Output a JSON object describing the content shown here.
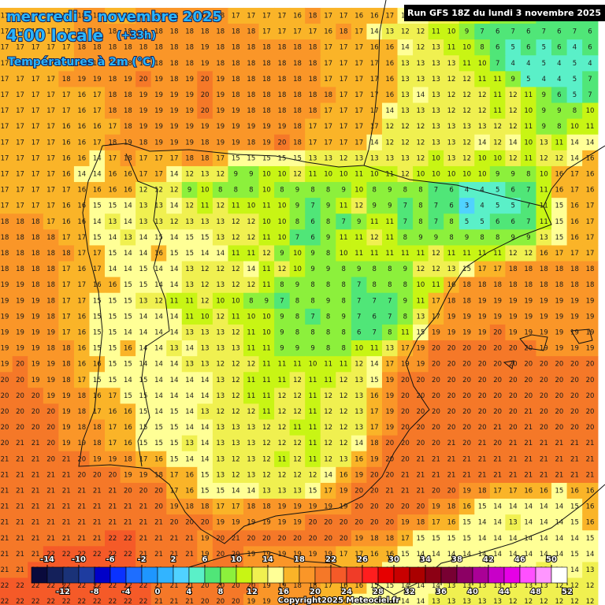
{
  "header": {
    "date": "mercredi 5 novembre 2025",
    "time": "4:00 locale",
    "lead": "(+33h)",
    "field": "Températures à 2m (°C)",
    "run": "Run GFS 18Z du lundi 3 novembre 2025",
    "copyright": "Copyright2025 Meteociel.fr"
  },
  "grid": [
    [
      17,
      17,
      17,
      17,
      17,
      18,
      18,
      17,
      17,
      18,
      18,
      18,
      18,
      18,
      18,
      17,
      17,
      17,
      17,
      16,
      18,
      17,
      17,
      16,
      16,
      17,
      15,
      14,
      13,
      12,
      11,
      10,
      9,
      9,
      8,
      7,
      6,
      6,
      6
    ],
    [
      17,
      17,
      17,
      17,
      17,
      18,
      18,
      18,
      18,
      18,
      18,
      18,
      18,
      18,
      18,
      18,
      18,
      17,
      17,
      17,
      17,
      16,
      18,
      17,
      14,
      13,
      12,
      12,
      11,
      10,
      9,
      7,
      6,
      7,
      6,
      7,
      6,
      7,
      6
    ],
    [
      17,
      17,
      17,
      17,
      17,
      18,
      18,
      18,
      18,
      18,
      18,
      18,
      18,
      19,
      18,
      18,
      18,
      18,
      18,
      18,
      18,
      17,
      17,
      17,
      16,
      16,
      14,
      12,
      13,
      11,
      10,
      8,
      6,
      5,
      6,
      5,
      6,
      4,
      6
    ],
    [
      17,
      17,
      17,
      17,
      17,
      18,
      18,
      18,
      18,
      18,
      18,
      18,
      18,
      19,
      18,
      18,
      18,
      18,
      18,
      18,
      18,
      17,
      17,
      17,
      17,
      16,
      13,
      13,
      13,
      13,
      11,
      10,
      7,
      4,
      4,
      5,
      4,
      5,
      4
    ],
    [
      17,
      17,
      17,
      17,
      18,
      19,
      19,
      18,
      19,
      20,
      19,
      18,
      19,
      20,
      19,
      18,
      18,
      18,
      18,
      18,
      18,
      17,
      17,
      17,
      17,
      16,
      13,
      13,
      13,
      12,
      12,
      11,
      11,
      9,
      5,
      4,
      4,
      5,
      7
    ],
    [
      17,
      17,
      17,
      17,
      17,
      16,
      17,
      18,
      18,
      19,
      19,
      19,
      19,
      20,
      19,
      18,
      18,
      18,
      18,
      18,
      18,
      18,
      17,
      17,
      17,
      16,
      13,
      14,
      13,
      12,
      12,
      12,
      11,
      12,
      11,
      9,
      6,
      5,
      7
    ],
    [
      17,
      17,
      17,
      17,
      17,
      16,
      17,
      18,
      18,
      19,
      19,
      19,
      19,
      20,
      19,
      19,
      18,
      18,
      18,
      18,
      18,
      17,
      17,
      17,
      17,
      14,
      13,
      13,
      13,
      12,
      12,
      12,
      11,
      12,
      10,
      9,
      9,
      8,
      10
    ],
    [
      17,
      17,
      17,
      17,
      16,
      16,
      16,
      17,
      18,
      19,
      19,
      19,
      19,
      19,
      19,
      19,
      19,
      19,
      19,
      18,
      17,
      17,
      17,
      17,
      17,
      12,
      12,
      12,
      13,
      13,
      13,
      13,
      12,
      12,
      11,
      9,
      8,
      10,
      11
    ],
    [
      17,
      17,
      17,
      17,
      16,
      16,
      17,
      18,
      19,
      18,
      19,
      19,
      19,
      18,
      19,
      19,
      18,
      19,
      20,
      18,
      17,
      17,
      17,
      17,
      14,
      12,
      12,
      12,
      13,
      13,
      12,
      14,
      12,
      14,
      10,
      13,
      11,
      14,
      14
    ],
    [
      17,
      17,
      17,
      17,
      16,
      16,
      14,
      17,
      18,
      17,
      17,
      17,
      18,
      18,
      17,
      15,
      15,
      15,
      15,
      15,
      13,
      13,
      12,
      13,
      13,
      13,
      13,
      12,
      10,
      13,
      12,
      10,
      10,
      12,
      11,
      12,
      12,
      14,
      16
    ],
    [
      17,
      17,
      17,
      17,
      16,
      14,
      14,
      16,
      16,
      17,
      17,
      14,
      12,
      13,
      12,
      9,
      9,
      10,
      10,
      12,
      11,
      10,
      10,
      11,
      10,
      11,
      12,
      10,
      10,
      10,
      10,
      10,
      9,
      9,
      8,
      10,
      16,
      17,
      16
    ],
    [
      17,
      17,
      17,
      17,
      17,
      16,
      16,
      16,
      16,
      12,
      12,
      12,
      9,
      10,
      8,
      8,
      8,
      10,
      8,
      9,
      8,
      8,
      9,
      10,
      8,
      9,
      8,
      8,
      7,
      6,
      4,
      4,
      5,
      6,
      7,
      11,
      16,
      17,
      16
    ],
    [
      17,
      17,
      17,
      17,
      16,
      16,
      15,
      15,
      14,
      13,
      13,
      14,
      12,
      11,
      12,
      11,
      10,
      11,
      10,
      9,
      7,
      9,
      11,
      12,
      9,
      9,
      7,
      8,
      7,
      6,
      3,
      4,
      5,
      5,
      7,
      11,
      15,
      16,
      17
    ],
    [
      18,
      18,
      18,
      17,
      16,
      16,
      14,
      13,
      14,
      13,
      13,
      12,
      13,
      13,
      13,
      12,
      12,
      10,
      10,
      8,
      6,
      8,
      7,
      9,
      11,
      11,
      7,
      8,
      7,
      8,
      5,
      5,
      6,
      6,
      7,
      11,
      15,
      16,
      17
    ],
    [
      18,
      18,
      18,
      18,
      17,
      17,
      15,
      14,
      13,
      14,
      15,
      14,
      15,
      15,
      13,
      12,
      12,
      11,
      10,
      7,
      6,
      9,
      11,
      11,
      12,
      11,
      8,
      9,
      9,
      8,
      9,
      8,
      8,
      9,
      9,
      13,
      15,
      16,
      17
    ],
    [
      18,
      18,
      18,
      18,
      18,
      17,
      17,
      15,
      14,
      14,
      16,
      15,
      15,
      14,
      14,
      11,
      11,
      12,
      9,
      10,
      9,
      8,
      10,
      11,
      11,
      11,
      11,
      11,
      12,
      11,
      11,
      11,
      11,
      12,
      12,
      16,
      17,
      17,
      17
    ],
    [
      18,
      18,
      18,
      18,
      17,
      16,
      17,
      14,
      14,
      15,
      14,
      14,
      13,
      12,
      12,
      12,
      14,
      11,
      12,
      10,
      9,
      9,
      8,
      9,
      8,
      8,
      9,
      12,
      12,
      13,
      15,
      17,
      17,
      18,
      18,
      18,
      18,
      18,
      18
    ],
    [
      19,
      19,
      18,
      18,
      17,
      17,
      16,
      16,
      15,
      15,
      14,
      14,
      13,
      12,
      13,
      12,
      12,
      11,
      8,
      9,
      8,
      8,
      8,
      7,
      8,
      8,
      8,
      10,
      11,
      16,
      18,
      18,
      18,
      18,
      18,
      18,
      18,
      18,
      18
    ],
    [
      19,
      19,
      19,
      18,
      17,
      17,
      15,
      15,
      15,
      13,
      12,
      11,
      11,
      12,
      10,
      10,
      8,
      9,
      7,
      8,
      8,
      9,
      8,
      7,
      7,
      7,
      9,
      11,
      17,
      18,
      18,
      19,
      19,
      19,
      19,
      19,
      19,
      19,
      19
    ],
    [
      19,
      19,
      19,
      18,
      17,
      16,
      15,
      15,
      15,
      14,
      14,
      14,
      11,
      10,
      12,
      11,
      10,
      10,
      9,
      8,
      7,
      8,
      9,
      7,
      6,
      7,
      8,
      13,
      17,
      19,
      19,
      19,
      19,
      19,
      19,
      19,
      19,
      19,
      19
    ],
    [
      19,
      19,
      19,
      19,
      17,
      16,
      15,
      15,
      14,
      14,
      14,
      14,
      13,
      13,
      13,
      12,
      11,
      10,
      9,
      8,
      8,
      8,
      8,
      6,
      7,
      8,
      11,
      15,
      19,
      19,
      19,
      19,
      20,
      19,
      19,
      19,
      19,
      19,
      19
    ],
    [
      19,
      19,
      19,
      18,
      18,
      16,
      15,
      15,
      16,
      14,
      14,
      13,
      14,
      13,
      13,
      13,
      11,
      11,
      9,
      9,
      9,
      8,
      8,
      10,
      11,
      13,
      17,
      19,
      20,
      20,
      20,
      20,
      20,
      20,
      20,
      19,
      19,
      19,
      19
    ],
    [
      19,
      20,
      19,
      19,
      18,
      16,
      16,
      15,
      15,
      14,
      14,
      14,
      13,
      13,
      12,
      12,
      12,
      11,
      11,
      11,
      10,
      11,
      11,
      12,
      14,
      17,
      19,
      19,
      20,
      20,
      20,
      20,
      20,
      20,
      20,
      20,
      20,
      20,
      20
    ],
    [
      20,
      20,
      19,
      19,
      18,
      17,
      15,
      15,
      14,
      15,
      14,
      14,
      14,
      14,
      13,
      12,
      11,
      11,
      11,
      12,
      11,
      11,
      12,
      13,
      15,
      19,
      20,
      20,
      20,
      20,
      20,
      20,
      20,
      20,
      20,
      20,
      20,
      20,
      20
    ],
    [
      20,
      20,
      20,
      19,
      19,
      18,
      16,
      17,
      15,
      15,
      14,
      14,
      14,
      14,
      13,
      12,
      11,
      11,
      12,
      12,
      11,
      12,
      12,
      13,
      16,
      19,
      20,
      20,
      20,
      20,
      20,
      20,
      20,
      20,
      20,
      20,
      20,
      20,
      20
    ],
    [
      20,
      20,
      20,
      20,
      19,
      18,
      17,
      16,
      16,
      15,
      14,
      15,
      14,
      13,
      12,
      12,
      12,
      11,
      12,
      12,
      11,
      12,
      12,
      13,
      17,
      19,
      20,
      20,
      20,
      20,
      20,
      20,
      20,
      20,
      21,
      20,
      20,
      20,
      20
    ],
    [
      20,
      20,
      20,
      20,
      19,
      18,
      18,
      17,
      16,
      15,
      15,
      15,
      14,
      14,
      13,
      13,
      13,
      12,
      12,
      11,
      11,
      12,
      12,
      13,
      17,
      19,
      20,
      20,
      20,
      20,
      20,
      20,
      21,
      20,
      21,
      20,
      20,
      20,
      20
    ],
    [
      20,
      21,
      21,
      20,
      19,
      19,
      18,
      17,
      16,
      15,
      15,
      15,
      13,
      14,
      13,
      13,
      13,
      12,
      12,
      12,
      11,
      12,
      12,
      14,
      18,
      20,
      20,
      20,
      20,
      21,
      20,
      21,
      20,
      21,
      21,
      21,
      21,
      21,
      21
    ],
    [
      21,
      21,
      21,
      20,
      21,
      20,
      19,
      19,
      18,
      17,
      16,
      15,
      14,
      14,
      13,
      12,
      13,
      12,
      11,
      12,
      11,
      12,
      13,
      16,
      19,
      20,
      20,
      21,
      21,
      21,
      21,
      21,
      21,
      21,
      21,
      21,
      21,
      21,
      21
    ],
    [
      21,
      21,
      21,
      21,
      21,
      20,
      20,
      20,
      19,
      19,
      18,
      17,
      16,
      15,
      13,
      12,
      13,
      12,
      12,
      12,
      12,
      14,
      16,
      19,
      20,
      20,
      21,
      21,
      21,
      21,
      21,
      21,
      21,
      21,
      21,
      21,
      21,
      21,
      21
    ],
    [
      21,
      21,
      21,
      21,
      21,
      21,
      21,
      21,
      20,
      20,
      20,
      17,
      16,
      15,
      15,
      14,
      14,
      13,
      13,
      13,
      15,
      17,
      19,
      20,
      20,
      21,
      21,
      21,
      20,
      20,
      19,
      18,
      17,
      17,
      16,
      16,
      15,
      16,
      16
    ],
    [
      21,
      21,
      21,
      21,
      21,
      21,
      21,
      21,
      21,
      21,
      20,
      19,
      18,
      18,
      17,
      17,
      18,
      18,
      19,
      19,
      19,
      19,
      19,
      20,
      20,
      20,
      20,
      20,
      19,
      18,
      16,
      15,
      14,
      14,
      14,
      14,
      14,
      15,
      16
    ],
    [
      21,
      21,
      21,
      21,
      21,
      21,
      21,
      21,
      21,
      21,
      21,
      20,
      20,
      20,
      19,
      19,
      19,
      19,
      19,
      19,
      20,
      20,
      20,
      20,
      20,
      20,
      19,
      18,
      17,
      16,
      15,
      14,
      14,
      13,
      14,
      14,
      14,
      15,
      16
    ],
    [
      21,
      21,
      21,
      21,
      21,
      21,
      21,
      22,
      22,
      21,
      21,
      21,
      21,
      19,
      20,
      21,
      20,
      20,
      20,
      20,
      20,
      20,
      20,
      19,
      18,
      18,
      17,
      15,
      15,
      15,
      15,
      14,
      14,
      14,
      14,
      14,
      14,
      14,
      15
    ],
    [
      21,
      21,
      21,
      22,
      22,
      22,
      22,
      22,
      22,
      21,
      21,
      21,
      21,
      19,
      20,
      20,
      19,
      19,
      19,
      19,
      19,
      19,
      17,
      17,
      16,
      16,
      15,
      14,
      14,
      14,
      14,
      14,
      14,
      14,
      14,
      14,
      14,
      15,
      14
    ],
    [
      21,
      21,
      22,
      22,
      22,
      22,
      22,
      22,
      22,
      21,
      21,
      21,
      20,
      20,
      20,
      20,
      19,
      19,
      19,
      19,
      19,
      18,
      17,
      16,
      16,
      15,
      15,
      14,
      14,
      14,
      14,
      14,
      14,
      14,
      14,
      13,
      14,
      14,
      13
    ],
    [
      22,
      22,
      22,
      22,
      22,
      22,
      22,
      22,
      22,
      22,
      21,
      21,
      21,
      20,
      20,
      20,
      20,
      19,
      19,
      18,
      18,
      17,
      16,
      16,
      15,
      15,
      14,
      14,
      14,
      13,
      13,
      13,
      13,
      13,
      13,
      13,
      12,
      12,
      12
    ],
    [
      22,
      22,
      22,
      22,
      22,
      22,
      22,
      22,
      22,
      22,
      21,
      21,
      21,
      20,
      20,
      20,
      19,
      19,
      19,
      18,
      18,
      17,
      16,
      15,
      15,
      14,
      14,
      14,
      13,
      13,
      13,
      13,
      13,
      12,
      12,
      12,
      12,
      12,
      12
    ]
  ],
  "colorbar": {
    "colors": [
      "#0a0a3c",
      "#14205a",
      "#1a3278",
      "#1e3ca0",
      "#0000c8",
      "#0a32ff",
      "#1e6eff",
      "#1e96ff",
      "#32b4ff",
      "#50d2ff",
      "#5af0c8",
      "#50e678",
      "#8cf03c",
      "#c8f514",
      "#f0f050",
      "#ffff96",
      "#fab428",
      "#fa9628",
      "#f57828",
      "#f55a28",
      "#f03c28",
      "#ff1e1e",
      "#e60000",
      "#c80000",
      "#aa0000",
      "#8c0014",
      "#780032",
      "#8c0064",
      "#aa0096",
      "#c800c8",
      "#e600e6",
      "#ff50ff",
      "#ff96ff",
      "#ffffff"
    ],
    "top_labels": [
      -14,
      -10,
      -6,
      -2,
      2,
      6,
      10,
      14,
      18,
      22,
      26,
      30,
      34,
      38,
      42,
      46,
      50
    ],
    "bottom_labels": [
      -12,
      -8,
      -4,
      0,
      4,
      8,
      12,
      16,
      20,
      24,
      28,
      32,
      36,
      40,
      44,
      48,
      52
    ]
  }
}
